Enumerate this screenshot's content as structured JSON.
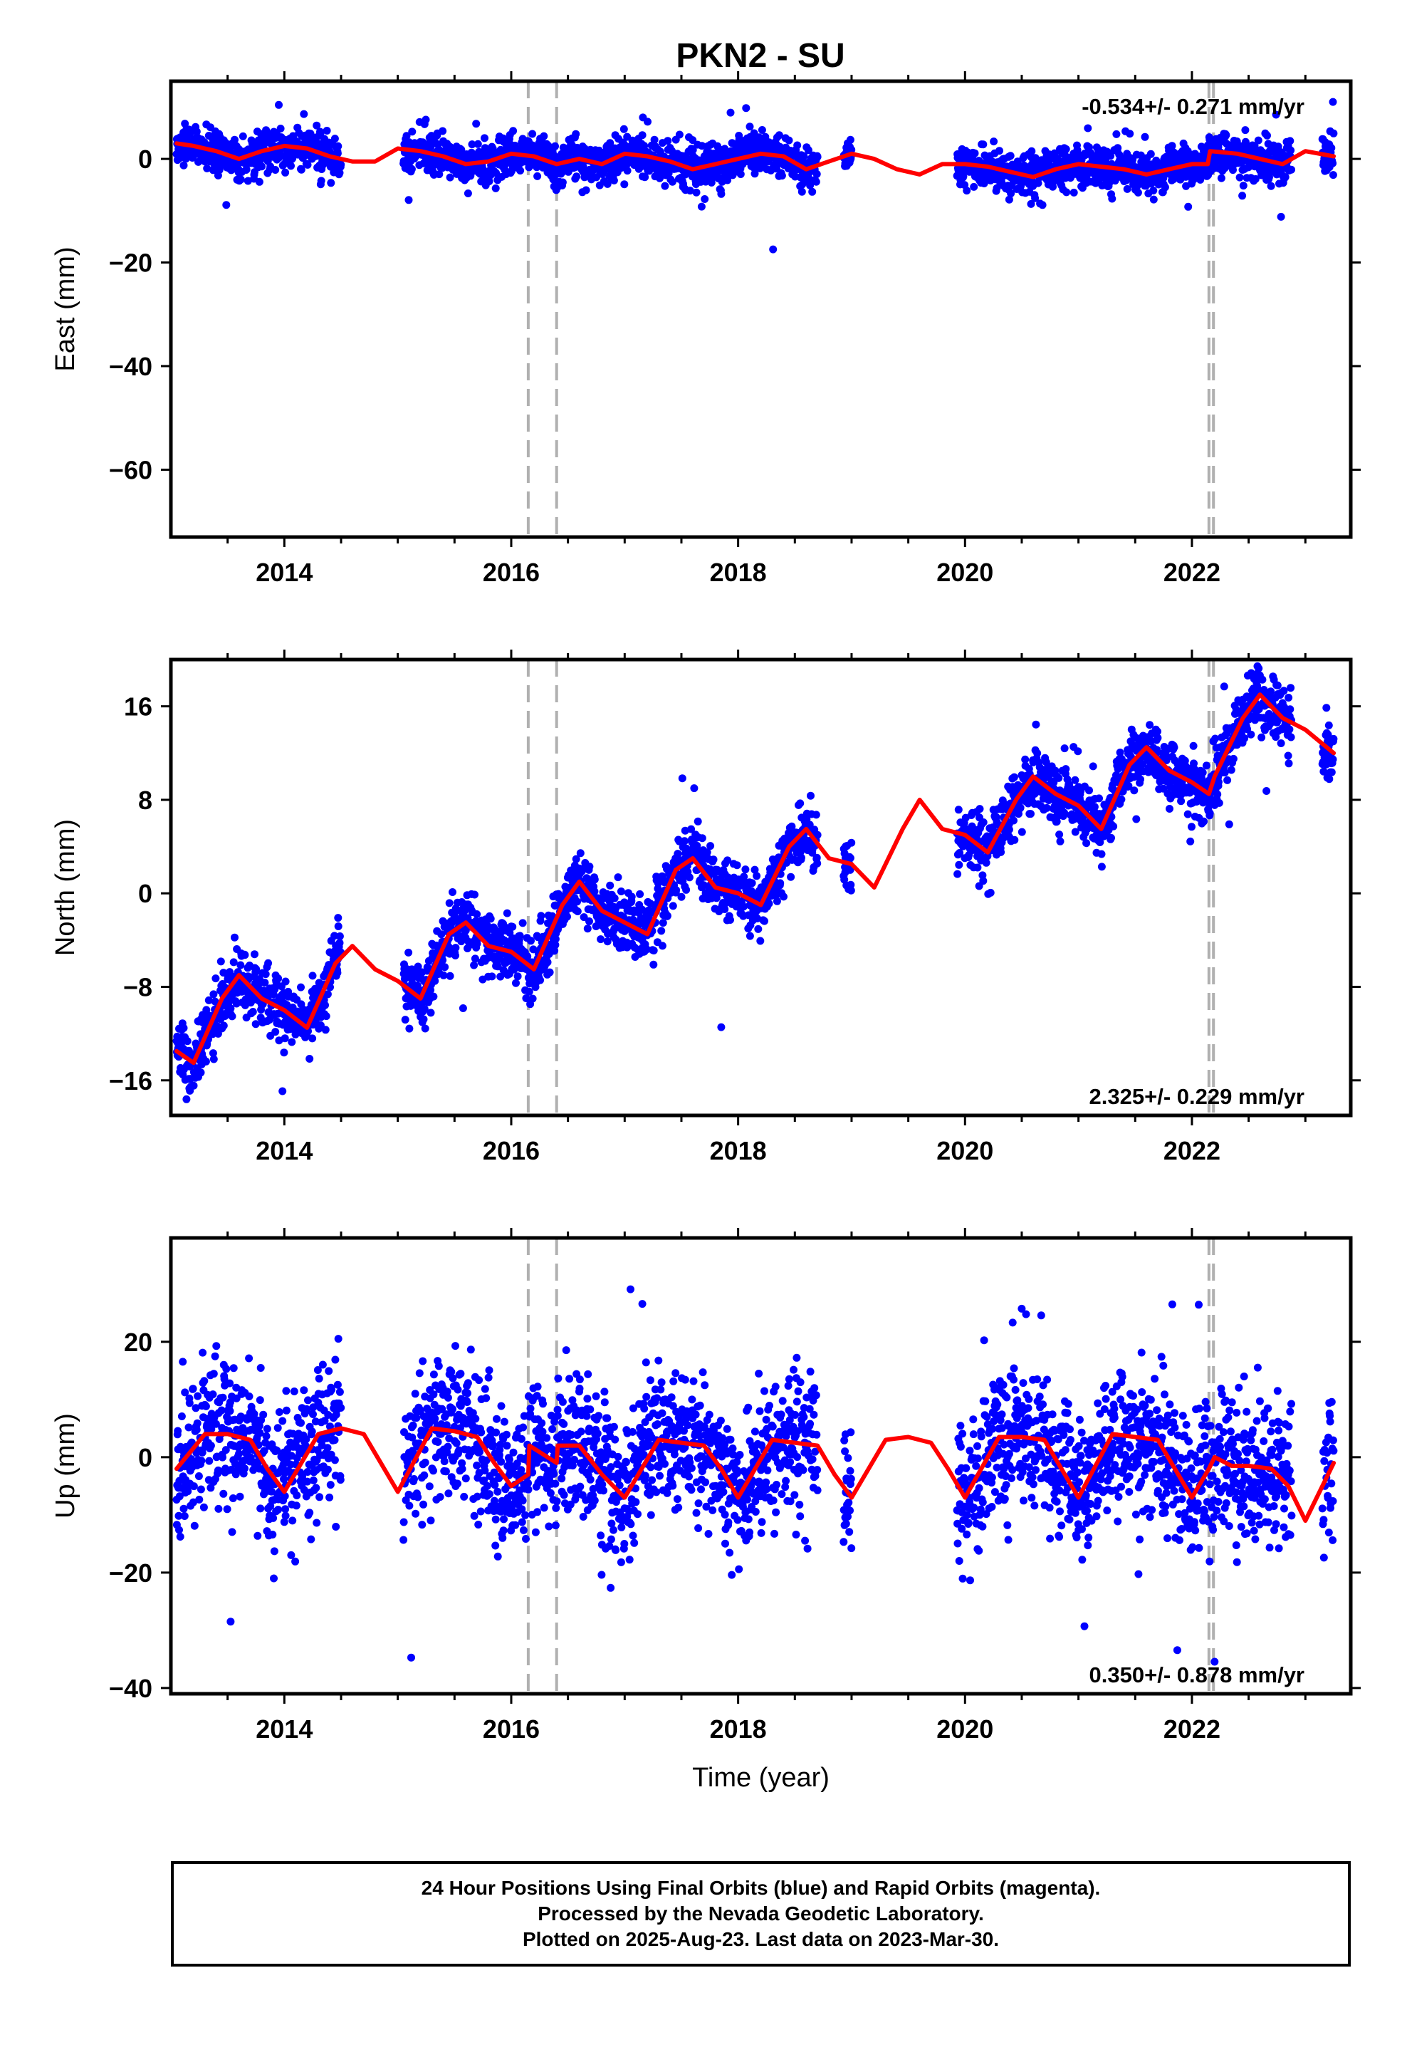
{
  "page_title": "PKN2 - SU",
  "colors": {
    "final_orbits": "#0000ff",
    "model": "#ff0000",
    "event_lines": "#b0b0b0",
    "frame": "#000000"
  },
  "chart_data": [
    {
      "type": "scatter",
      "component": "east",
      "title": "PKN2 - SU",
      "ylabel": "East (mm)",
      "xlabel": "",
      "xlim": [
        2013.0,
        2023.4
      ],
      "ylim": [
        -73,
        15
      ],
      "x_ticks": [
        "2014",
        "2016",
        "2018",
        "2020",
        "2022"
      ],
      "y_ticks": [
        "0",
        "−20",
        "−40",
        "−60"
      ],
      "y_tick_values": [
        0,
        -20,
        -40,
        -60
      ],
      "rate_label": "-0.534+/- 0.271 mm/yr",
      "rate_label_position": "top-right",
      "event_lines": [
        2016.15,
        2016.4,
        2022.15,
        2022.19
      ],
      "data_segments": [
        [
          2013.05,
          2014.5
        ],
        [
          2015.05,
          2018.7
        ],
        [
          2018.93,
          2019.0
        ],
        [
          2019.93,
          2022.88
        ],
        [
          2023.15,
          2023.25
        ]
      ],
      "scatter_sigma": 2.0,
      "model": {
        "name": "model fit",
        "x": [
          2013.05,
          2013.2,
          2013.4,
          2013.6,
          2013.8,
          2014.0,
          2014.2,
          2014.4,
          2014.6,
          2014.8,
          2015.0,
          2015.2,
          2015.4,
          2015.6,
          2015.8,
          2016.0,
          2016.2,
          2016.4,
          2016.6,
          2016.8,
          2017.0,
          2017.2,
          2017.4,
          2017.6,
          2017.8,
          2018.0,
          2018.2,
          2018.4,
          2018.6,
          2018.8,
          2019.0,
          2019.2,
          2019.4,
          2019.6,
          2019.8,
          2020.0,
          2020.2,
          2020.4,
          2020.6,
          2020.8,
          2021.0,
          2021.2,
          2021.4,
          2021.6,
          2021.8,
          2022.0,
          2022.14,
          2022.16,
          2022.4,
          2022.6,
          2022.8,
          2023.0,
          2023.25
        ],
        "y": [
          3,
          2.5,
          1.5,
          0,
          1.5,
          2.5,
          2,
          0.5,
          -0.5,
          -0.5,
          2,
          1.5,
          0.5,
          -1,
          -0.5,
          1,
          0.5,
          -1,
          0,
          -1,
          1,
          0.5,
          -0.5,
          -2,
          -1,
          0,
          1,
          0.5,
          -2,
          -0.5,
          1,
          0,
          -2,
          -3,
          -1,
          -1,
          -1.5,
          -2.5,
          -3.5,
          -2,
          -1,
          -1.5,
          -2,
          -3,
          -2,
          -1,
          -1,
          1.5,
          1,
          0,
          -1,
          1.5,
          0.5
        ]
      }
    },
    {
      "type": "scatter",
      "component": "north",
      "ylabel": "North (mm)",
      "xlabel": "",
      "xlim": [
        2013.0,
        2023.4
      ],
      "ylim": [
        -19,
        20
      ],
      "x_ticks": [
        "2014",
        "2016",
        "2018",
        "2020",
        "2022"
      ],
      "y_ticks": [
        "16",
        "8",
        "0",
        "−8",
        "−16"
      ],
      "y_tick_values": [
        16,
        8,
        0,
        -8,
        -16
      ],
      "rate_label": "2.325+/- 0.229 mm/yr",
      "rate_label_position": "bottom-right",
      "event_lines": [
        2016.15,
        2016.4,
        2022.15,
        2022.19
      ],
      "data_segments": [
        [
          2013.05,
          2014.5
        ],
        [
          2015.05,
          2018.7
        ],
        [
          2018.93,
          2019.0
        ],
        [
          2019.93,
          2022.88
        ],
        [
          2023.15,
          2023.25
        ]
      ],
      "scatter_sigma": 1.3,
      "model": {
        "name": "model fit",
        "x": [
          2013.05,
          2013.2,
          2013.45,
          2013.6,
          2013.8,
          2014.0,
          2014.2,
          2014.45,
          2014.6,
          2014.8,
          2015.0,
          2015.2,
          2015.45,
          2015.6,
          2015.8,
          2016.0,
          2016.2,
          2016.45,
          2016.6,
          2016.8,
          2017.0,
          2017.2,
          2017.45,
          2017.6,
          2017.8,
          2018.0,
          2018.2,
          2018.45,
          2018.6,
          2018.8,
          2019.0,
          2019.2,
          2019.45,
          2019.6,
          2019.8,
          2020.0,
          2020.2,
          2020.45,
          2020.6,
          2020.8,
          2021.0,
          2021.2,
          2021.45,
          2021.6,
          2021.8,
          2022.0,
          2022.15,
          2022.2,
          2022.45,
          2022.6,
          2022.8,
          2023.0,
          2023.25
        ],
        "y": [
          -13.5,
          -14.5,
          -9,
          -7,
          -9,
          -10,
          -11.5,
          -6,
          -4.5,
          -6.5,
          -7.5,
          -9,
          -3.5,
          -2.5,
          -4.5,
          -5,
          -6.5,
          -1,
          1,
          -1.5,
          -2.5,
          -3.5,
          2,
          3,
          0.5,
          0,
          -1,
          4,
          5.5,
          3,
          2.5,
          0.5,
          5.5,
          8,
          5.5,
          5,
          3.5,
          8,
          10,
          8.5,
          7.5,
          5.5,
          11,
          12.5,
          10.5,
          9.5,
          8.5,
          10,
          15,
          17,
          15,
          14,
          12
        ]
      }
    },
    {
      "type": "scatter",
      "component": "up",
      "ylabel": "Up (mm)",
      "xlabel": "Time (year)",
      "xlim": [
        2013.0,
        2023.4
      ],
      "ylim": [
        -41,
        38
      ],
      "x_ticks": [
        "2014",
        "2016",
        "2018",
        "2020",
        "2022"
      ],
      "y_ticks": [
        "20",
        "0",
        "−20",
        "−40"
      ],
      "y_tick_values": [
        20,
        0,
        -20,
        -40
      ],
      "rate_label": "0.350+/- 0.878 mm/yr",
      "rate_label_position": "bottom-right",
      "event_lines": [
        2016.15,
        2016.4,
        2022.15,
        2022.19
      ],
      "data_segments": [
        [
          2013.05,
          2014.5
        ],
        [
          2015.05,
          2018.7
        ],
        [
          2018.93,
          2019.0
        ],
        [
          2019.93,
          2022.88
        ],
        [
          2023.15,
          2023.25
        ]
      ],
      "scatter_sigma": 6.0,
      "model": {
        "name": "model fit",
        "x": [
          2013.05,
          2013.3,
          2013.5,
          2013.7,
          2013.85,
          2014.0,
          2014.3,
          2014.5,
          2014.7,
          2014.85,
          2015.0,
          2015.3,
          2015.5,
          2015.7,
          2015.85,
          2016.0,
          2016.15,
          2016.16,
          2016.4,
          2016.41,
          2016.6,
          2016.8,
          2017.0,
          2017.3,
          2017.5,
          2017.7,
          2017.85,
          2018.0,
          2018.3,
          2018.5,
          2018.7,
          2018.85,
          2019.0,
          2019.3,
          2019.5,
          2019.7,
          2019.85,
          2020.0,
          2020.3,
          2020.5,
          2020.7,
          2020.85,
          2021.0,
          2021.3,
          2021.5,
          2021.7,
          2021.85,
          2022.0,
          2022.15,
          2022.2,
          2022.35,
          2022.5,
          2022.7,
          2022.85,
          2023.0,
          2023.25
        ],
        "y": [
          -2,
          4,
          4,
          3,
          -2,
          -6,
          4,
          5,
          4,
          -1,
          -6,
          5,
          4.5,
          3.5,
          -1,
          -5,
          -3,
          2,
          -1,
          2,
          2,
          -3,
          -7,
          3,
          2.5,
          2,
          -2,
          -7,
          3,
          2.5,
          2,
          -3,
          -7,
          3,
          3.5,
          2.5,
          -2,
          -7,
          3.5,
          3.5,
          3,
          -2,
          -7,
          4,
          3.5,
          3,
          -2,
          -7,
          -2,
          0,
          -1.5,
          -1.5,
          -2,
          -5,
          -11,
          -1
        ]
      }
    }
  ],
  "footer": {
    "line1": "24 Hour Positions Using Final Orbits (blue) and Rapid Orbits (magenta).",
    "line2": "Processed by the Nevada Geodetic Laboratory.",
    "line3": "Plotted on 2025-Aug-23. Last data on 2023-Mar-30."
  }
}
